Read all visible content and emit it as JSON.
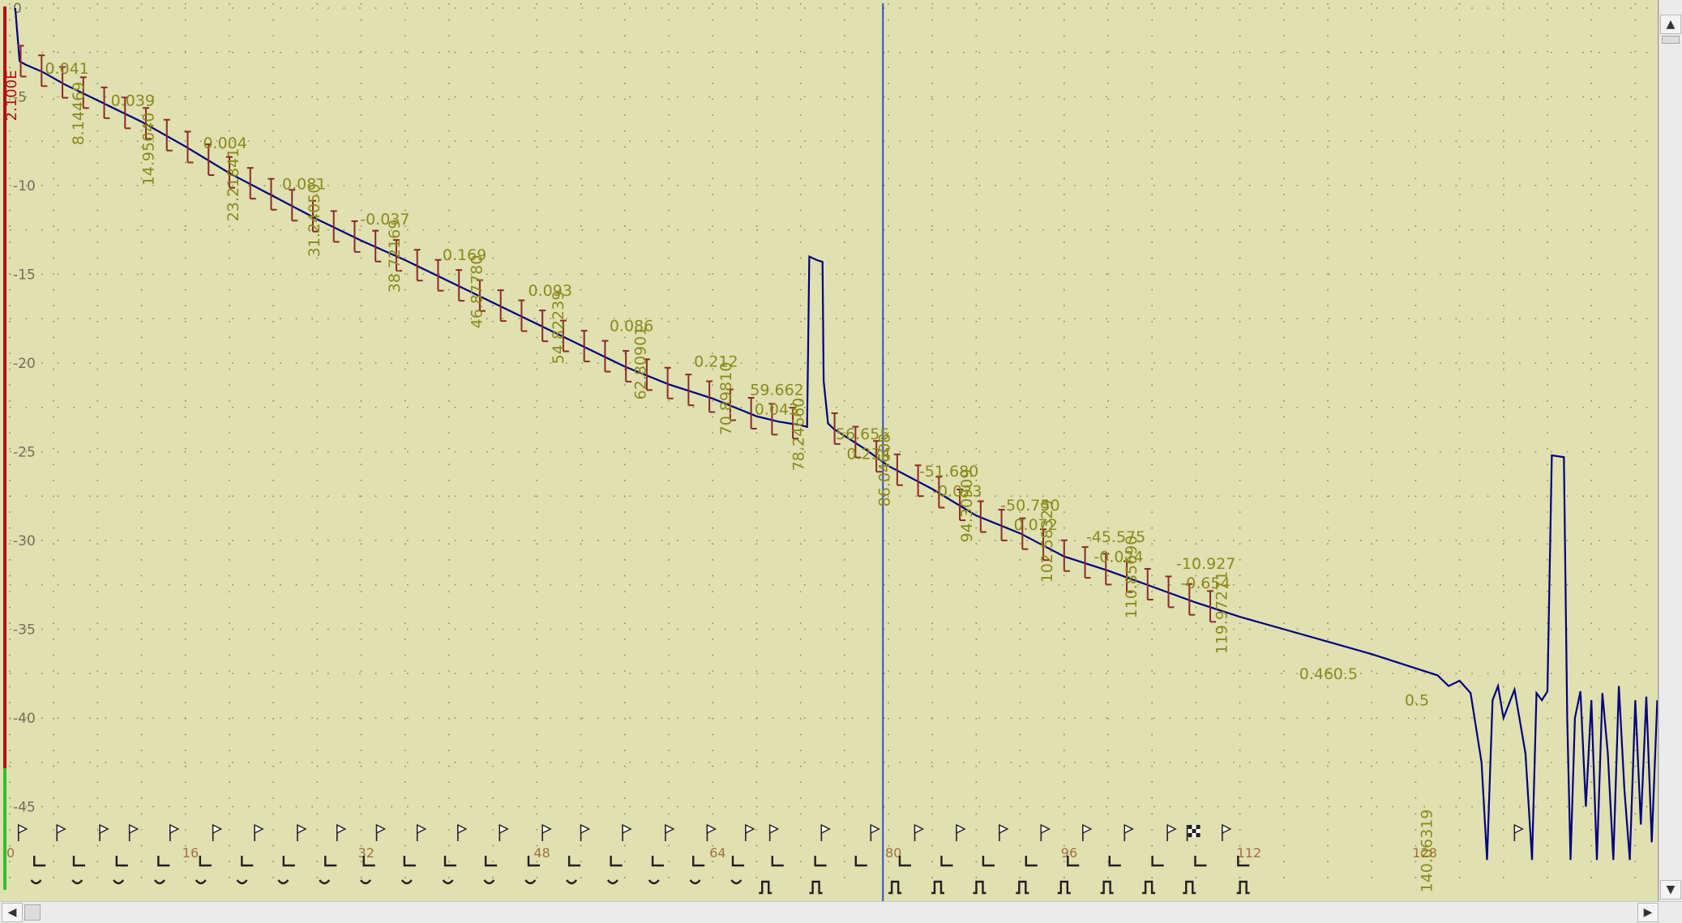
{
  "chart_data": {
    "type": "line",
    "title": "",
    "xlabel": "",
    "ylabel": "",
    "xlim": [
      0,
      150
    ],
    "ylim": [
      -46,
      0
    ],
    "grid": true,
    "y_ticks": [
      0,
      -5,
      -10,
      -15,
      -20,
      -25,
      -30,
      -35,
      -40,
      -45
    ],
    "y_tick_labels": [
      "0",
      "-5",
      "-10",
      "-15",
      "-20",
      "-25",
      "-30",
      "-35",
      "-40",
      "-45"
    ],
    "x_ticks": [
      0,
      16,
      32,
      48,
      64,
      80,
      96,
      112,
      128
    ],
    "x_tick_labels": [
      "0",
      "16",
      "32",
      "48",
      "64",
      "80",
      "96",
      "112",
      "128"
    ],
    "y_axis_side_label": "2.100E",
    "cursor_x": 79.5,
    "colors": {
      "background": "#e0e0b0",
      "trace": "#000080",
      "annotation": "#8a8a1e",
      "marker": "#8b2a2a",
      "cursor": "#3050d0"
    },
    "series": [
      {
        "points": [
          [
            0.5,
            0
          ],
          [
            0.9,
            -3
          ],
          [
            1.5,
            -3.2
          ],
          [
            3,
            -3.6
          ],
          [
            5,
            -4.3
          ],
          [
            8,
            -5.2
          ],
          [
            12,
            -6.4
          ],
          [
            16,
            -7.8
          ],
          [
            20,
            -9.3
          ],
          [
            24,
            -10.6
          ],
          [
            28,
            -11.9
          ],
          [
            32,
            -13.1
          ],
          [
            36,
            -14.2
          ],
          [
            40,
            -15.4
          ],
          [
            44,
            -16.6
          ],
          [
            48,
            -17.8
          ],
          [
            52,
            -19.0
          ],
          [
            56,
            -20.2
          ],
          [
            60,
            -21.2
          ],
          [
            64,
            -22.0
          ],
          [
            66,
            -22.5
          ],
          [
            68,
            -23.0
          ],
          [
            70,
            -23.3
          ],
          [
            71,
            -23.4
          ],
          [
            72,
            -23.5
          ],
          [
            72.6,
            -23.6
          ],
          [
            72.8,
            -14.0
          ],
          [
            73.5,
            -14.2
          ],
          [
            74,
            -14.3
          ],
          [
            74.1,
            -21.0
          ],
          [
            74.5,
            -23.4
          ],
          [
            75,
            -23.7
          ],
          [
            78,
            -24.9
          ],
          [
            80,
            -25.8
          ],
          [
            84,
            -27.1
          ],
          [
            88,
            -28.6
          ],
          [
            92,
            -29.6
          ],
          [
            96,
            -30.9
          ],
          [
            100,
            -31.7
          ],
          [
            104,
            -32.6
          ],
          [
            108,
            -33.5
          ],
          [
            112,
            -34.3
          ],
          [
            116,
            -35.0
          ],
          [
            120,
            -35.7
          ],
          [
            124,
            -36.4
          ],
          [
            128,
            -37.2
          ],
          [
            130,
            -37.6
          ],
          [
            131,
            -38.2
          ],
          [
            132,
            -37.9
          ],
          [
            133,
            -38.6
          ],
          [
            134,
            -42.5
          ],
          [
            134.5,
            -48
          ],
          [
            135,
            -39
          ],
          [
            135.5,
            -38.2
          ],
          [
            136,
            -40
          ],
          [
            137,
            -38.4
          ],
          [
            138,
            -42
          ],
          [
            138.6,
            -48
          ],
          [
            139,
            -38.6
          ],
          [
            139.5,
            -39
          ],
          [
            140,
            -38.5
          ],
          [
            140.4,
            -25.2
          ],
          [
            141.5,
            -25.3
          ],
          [
            141.8,
            -40
          ],
          [
            142.1,
            -48
          ],
          [
            142.5,
            -40
          ],
          [
            143,
            -38.5
          ],
          [
            143.5,
            -45
          ],
          [
            144,
            -39
          ],
          [
            144.5,
            -48
          ],
          [
            145,
            -38.6
          ],
          [
            145.5,
            -42
          ],
          [
            146,
            -48
          ],
          [
            146.5,
            -38.2
          ],
          [
            147,
            -44
          ],
          [
            147.5,
            -48
          ],
          [
            148,
            -39
          ],
          [
            148.5,
            -46
          ],
          [
            149,
            -38.8
          ],
          [
            149.5,
            -47
          ],
          [
            150,
            -39
          ]
        ]
      }
    ],
    "value_labels": [
      {
        "x": 3.2,
        "y": -3.7,
        "text": "0.041"
      },
      {
        "x": 9.2,
        "y": -5.5,
        "text": "0.039"
      },
      {
        "x": 17.6,
        "y": -7.9,
        "text": "0.004"
      },
      {
        "x": 24.8,
        "y": -10.2,
        "text": "0.081"
      },
      {
        "x": 31.9,
        "y": -12.2,
        "text": "-0.037"
      },
      {
        "x": 39.4,
        "y": -14.2,
        "text": "0.169"
      },
      {
        "x": 47.2,
        "y": -16.2,
        "text": "0.093"
      },
      {
        "x": 54.6,
        "y": -18.2,
        "text": "0.086"
      },
      {
        "x": 62.3,
        "y": -20.2,
        "text": "0.212"
      },
      {
        "x": 67.4,
        "y": -21.8,
        "text": "59.662"
      },
      {
        "x": 67.8,
        "y": -22.9,
        "text": "0.043"
      },
      {
        "x": 75.2,
        "y": -24.3,
        "text": "56.655"
      },
      {
        "x": 76.2,
        "y": -25.4,
        "text": "0.234"
      },
      {
        "x": 82.8,
        "y": -26.4,
        "text": "-51.680"
      },
      {
        "x": 84.0,
        "y": -27.5,
        "text": "-0.023"
      },
      {
        "x": 90.2,
        "y": -28.3,
        "text": "-50.750"
      },
      {
        "x": 91.4,
        "y": -29.4,
        "text": "0.072"
      },
      {
        "x": 98.0,
        "y": -30.1,
        "text": "-45.575"
      },
      {
        "x": 98.7,
        "y": -31.2,
        "text": "-0.024"
      },
      {
        "x": 106.2,
        "y": -31.6,
        "text": "-10.927"
      },
      {
        "x": 106.6,
        "y": -32.7,
        "text": "-0.654"
      },
      {
        "x": 117.4,
        "y": -37.8,
        "text": "0.46"
      },
      {
        "x": 120.5,
        "y": -37.8,
        "text": "0.5"
      },
      {
        "x": 127.0,
        "y": -39.3,
        "text": "0.5"
      }
    ],
    "vertical_labels": [
      {
        "x": 6.7,
        "text": "8.14469"
      },
      {
        "x": 13.1,
        "text": "14.95040"
      },
      {
        "x": 20.8,
        "text": "23.21841"
      },
      {
        "x": 28.2,
        "text": "31.24050"
      },
      {
        "x": 35.5,
        "text": "38.72169"
      },
      {
        "x": 43.0,
        "text": "46.87780"
      },
      {
        "x": 50.4,
        "text": "54.82239"
      },
      {
        "x": 57.9,
        "text": "62.80901"
      },
      {
        "x": 65.7,
        "text": "70.89810"
      },
      {
        "x": 72.3,
        "text": "78.24660"
      },
      {
        "x": 80.1,
        "text": "86.04608"
      },
      {
        "x": 87.6,
        "text": "94.30909"
      },
      {
        "x": 94.9,
        "text": "102.58329"
      },
      {
        "x": 102.6,
        "text": "110.85690"
      },
      {
        "x": 110.8,
        "text": "119.97271"
      },
      {
        "x": 129.5,
        "text": "140.06319"
      }
    ],
    "flag_x": [
      0.8,
      4.3,
      8.2,
      10.9,
      14.6,
      18.5,
      22.3,
      26.2,
      29.8,
      33.4,
      37.1,
      40.8,
      44.6,
      48.5,
      52.0,
      55.8,
      59.7,
      63.5,
      67.0,
      69.2,
      73.9,
      78.4,
      82.4,
      86.2,
      90.1,
      93.9,
      97.7,
      101.5,
      105.4,
      110.4,
      137.0
    ],
    "flag_finish_x": 107.2,
    "waveform_steps_x": [
      2.6,
      6.2,
      10.1,
      13.9,
      17.7,
      21.5,
      25.3,
      29.1,
      32.6,
      36.3,
      40.0,
      43.7,
      47.6,
      51.3,
      55.1,
      58.9,
      62.6,
      66.2,
      69.8,
      73.7,
      77.4,
      81.4,
      85.2,
      89.0,
      92.9,
      96.7,
      100.5,
      104.4,
      108.3,
      112.2
    ],
    "pulse_x": [
      68.8,
      73.4,
      80.6,
      84.5,
      88.3,
      92.2,
      96.0,
      99.9,
      103.7,
      107.4,
      112.3
    ]
  },
  "scrollbars": {
    "left_arrow": "◀",
    "right_arrow": "▶",
    "up_arrow": "▲",
    "down_arrow": "▼"
  }
}
